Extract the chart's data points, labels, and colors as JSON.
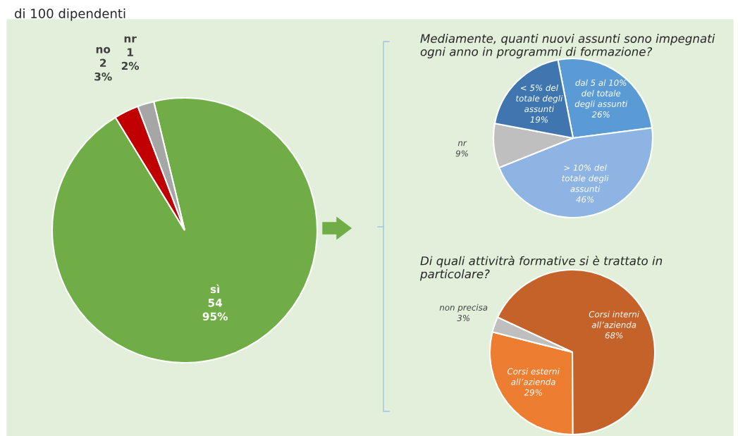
{
  "chart_data": [
    {
      "type": "pie",
      "title": "di 100 dipendenti",
      "categories": [
        "sì",
        "no",
        "nr"
      ],
      "values": [
        95,
        3,
        2
      ],
      "colors": [
        "#70ad47",
        "#c00000",
        "#a6a6a6"
      ],
      "value_labels": [
        "54\n95%",
        "2\n3%",
        "1\n2%"
      ]
    },
    {
      "type": "pie",
      "title": "Mediamente, quanti nuovi assunti sono impegnati ogni anno in programmi di formazione?",
      "categories": [
        "dal 5 al 10%\ndel totale\ndegli assunti",
        "> 10% del\ntotale degli\nassunti",
        "nr",
        "< 5% del\ntotale degli\nassunti"
      ],
      "values": [
        26,
        46,
        9,
        19
      ],
      "colors": [
        "#5b9bd5",
        "#8db4e2",
        "#bfbfbf",
        "#3f76b0"
      ],
      "value_labels": [
        "26%",
        "46%",
        "9%",
        "19%"
      ]
    },
    {
      "type": "pie",
      "title": "Di quali attivitrà formative si è trattato in\nparticolare?",
      "categories": [
        "Corsi interni\nall’azienda",
        "Corsi esterni\nall’azienda",
        "non precisa"
      ],
      "values": [
        68,
        29,
        3
      ],
      "colors": [
        "#c5622a",
        "#ed7d31",
        "#bfbfbf"
      ],
      "value_labels": [
        "68%",
        "29%",
        "3%"
      ]
    }
  ]
}
